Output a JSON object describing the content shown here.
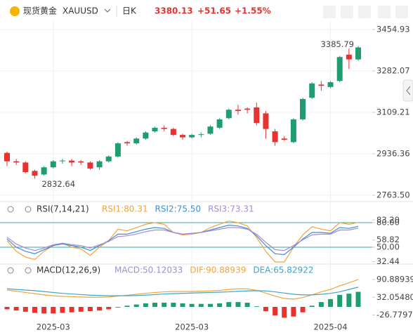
{
  "header": {
    "name": "现货黄金",
    "symbol": "XAUUSD",
    "period": "日K",
    "price": "3380.13",
    "change": "+51.65",
    "change_pct": "+1.55%"
  },
  "chart_data": [
    {
      "type": "candlestick",
      "up_color": "#1f9d6f",
      "down_color": "#e8322f",
      "grid": true,
      "categories": [
        null,
        null,
        null,
        null,
        null,
        "2025-03",
        null,
        null,
        null,
        null,
        null,
        null,
        null,
        null,
        null,
        null,
        null,
        null,
        null,
        null,
        "2025-03",
        null,
        null,
        null,
        null,
        null,
        null,
        null,
        null,
        null,
        null,
        null,
        null,
        null,
        null,
        "2025-04",
        null,
        null,
        null
      ],
      "open": [
        2940,
        2905,
        2900,
        2865,
        2850,
        2880,
        2905,
        2908,
        2905,
        2900,
        2880,
        2905,
        2925,
        2985,
        2980,
        3000,
        3030,
        3045,
        3040,
        3015,
        3005,
        3015,
        3020,
        3045,
        3085,
        3120,
        3125,
        3130,
        3105,
        3030,
        3000,
        2985,
        3080,
        3170,
        3225,
        3215,
        3240,
        3350,
        3330
      ],
      "high": [
        2945,
        2915,
        2905,
        2870,
        2885,
        2910,
        2915,
        2915,
        2910,
        2905,
        2910,
        2930,
        2985,
        2990,
        3005,
        3030,
        3050,
        3055,
        3045,
        3020,
        3020,
        3025,
        3055,
        3085,
        3125,
        3140,
        3130,
        3150,
        3115,
        3040,
        3010,
        3085,
        3170,
        3235,
        3240,
        3240,
        3345,
        3375,
        3385.79
      ],
      "low": [
        2885,
        2890,
        2855,
        2832.64,
        2845,
        2875,
        2895,
        2885,
        2890,
        2870,
        2870,
        2900,
        2920,
        2970,
        2975,
        2995,
        3025,
        3030,
        3010,
        2995,
        3000,
        3005,
        3015,
        3040,
        3080,
        3100,
        3105,
        3055,
        3000,
        2970,
        2990,
        2980,
        3075,
        3165,
        3200,
        3210,
        3235,
        3290,
        3325
      ],
      "close": [
        2905,
        2900,
        2860,
        2845,
        2880,
        2905,
        2908,
        2900,
        2900,
        2875,
        2905,
        2925,
        2980,
        2980,
        3000,
        3025,
        3045,
        3040,
        3015,
        3005,
        3015,
        3018,
        3050,
        3080,
        3120,
        3115,
        3120,
        3065,
        3040,
        2985,
        2995,
        3080,
        3165,
        3230,
        3220,
        3235,
        3340,
        3330,
        3380.13
      ],
      "ylim": [
        2743,
        3490
      ],
      "yticks": [
        3454.93,
        3282.07,
        3109.21,
        2936.36,
        {
          "value": 2763.5,
          "label": "2763.50"
        }
      ],
      "annotations": [
        {
          "text": "3385.79"
        },
        {
          "text": "2832.64"
        }
      ]
    },
    {
      "type": "line",
      "title": "RSI(7,14,21)",
      "series": [
        {
          "name": "RSI1:80.31",
          "color": "#f2a33a",
          "values": [
            58,
            45,
            38,
            35,
            45,
            52,
            55,
            50,
            48,
            40,
            50,
            58,
            72,
            70,
            74,
            78,
            80,
            78,
            68,
            65,
            66,
            68,
            74,
            78,
            82,
            80,
            76,
            62,
            45,
            32,
            32,
            50,
            65,
            75,
            72,
            70,
            80,
            78,
            80.31
          ]
        },
        {
          "name": "RSI2:75.50",
          "color": "#3d8fd6",
          "values": [
            60,
            50,
            45,
            42,
            47,
            52,
            54,
            52,
            50,
            46,
            52,
            58,
            66,
            66,
            69,
            72,
            74,
            73,
            68,
            66,
            67,
            68,
            71,
            74,
            77,
            76,
            73,
            64,
            52,
            42,
            41,
            50,
            60,
            68,
            68,
            67,
            74,
            73,
            75.5
          ]
        },
        {
          "name": "RSI3:73.31",
          "color": "#a68ad8",
          "values": [
            62,
            54,
            49,
            46,
            49,
            53,
            55,
            53,
            52,
            49,
            53,
            57,
            63,
            64,
            66,
            69,
            71,
            71,
            68,
            66,
            67,
            68,
            70,
            72,
            74,
            74,
            72,
            66,
            56,
            47,
            46,
            52,
            59,
            65,
            66,
            66,
            71,
            71,
            73.31
          ]
        }
      ],
      "levels": [
        80,
        50
      ],
      "level_color": "#3aa6a0",
      "ylim": [
        30.3,
        90.3
      ],
      "yticks": [
        {
          "value": 80,
          "label": "80.00"
        },
        {
          "value": 83.2,
          "label": "83.20"
        },
        58.82,
        {
          "value": 50,
          "label": "50.00"
        },
        32.44
      ]
    },
    {
      "type": "macd",
      "title": "MACD(12,26,9)",
      "up_color": "#1f9d6f",
      "down_color": "#e8322f",
      "histogram": {
        "name": "MACD:50.12033",
        "color": "#a68ad8",
        "values": [
          -8,
          -12,
          -16,
          -20,
          -22,
          -22,
          -20,
          -18,
          -16,
          -14,
          -12,
          -8,
          -2,
          4,
          8,
          12,
          14,
          14,
          14,
          12,
          10,
          10,
          10,
          12,
          16,
          16,
          14,
          2,
          -14,
          -28,
          -36,
          -32,
          -18,
          4,
          16,
          26,
          40,
          44,
          50.12033
        ]
      },
      "series": [
        {
          "name": "DIF:90.88939",
          "color": "#f2a33a",
          "values": [
            56,
            52,
            48,
            44,
            40,
            37,
            35,
            34,
            33,
            32,
            32,
            33,
            36,
            39,
            42,
            45,
            48,
            50,
            51,
            51,
            51,
            52,
            53,
            55,
            58,
            60,
            60,
            55,
            46,
            36,
            28,
            26,
            31,
            40,
            50,
            58,
            70,
            80,
            90.88939
          ]
        },
        {
          "name": "DEA:65.82922",
          "color": "#3aa6c8",
          "values": [
            60,
            58,
            56,
            54,
            51,
            48,
            45,
            43,
            41,
            39,
            38,
            37,
            37,
            37,
            38,
            39,
            41,
            43,
            44,
            45,
            46,
            47,
            48,
            49,
            50,
            52,
            53,
            54,
            53,
            50,
            46,
            42,
            40,
            40,
            42,
            45,
            50,
            58,
            65.82922
          ]
        }
      ],
      "ylim": [
        -49,
        105
      ],
      "yticks": [
        90.88939,
        {
          "value": 32.0548,
          "label": "32.05480"
        },
        -26.77979
      ]
    }
  ]
}
